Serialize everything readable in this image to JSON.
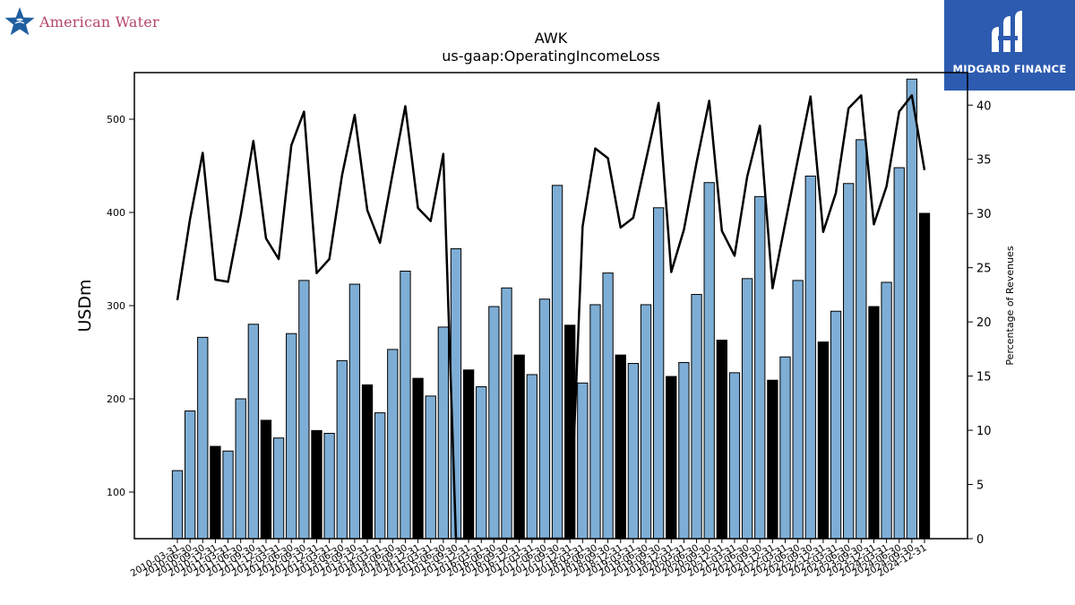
{
  "branding": {
    "left_logo": {
      "icon": "star-water-logo-icon",
      "text": "American Water",
      "color": "#b5446e",
      "icon_color": "#1f5f9f"
    },
    "right_badge": {
      "icon": "midgard-logo-icon",
      "text": "MIDGARD FINANCE",
      "background": "#2d5bb0"
    }
  },
  "chart_data": {
    "type": "bar",
    "title": "AWK",
    "subtitle": "us-gaap:OperatingIncomeLoss",
    "ylabel": "USDm",
    "y2label": "Percentage of Revenues",
    "ylim": [
      50,
      550
    ],
    "y2lim": [
      0,
      43
    ],
    "yticks": [
      100,
      200,
      300,
      400,
      500
    ],
    "y2ticks": [
      0,
      5,
      10,
      15,
      20,
      25,
      30,
      35,
      40
    ],
    "colors": {
      "quarter_bar": "#7eaed5",
      "annual_bar": "#000000",
      "line": "#000000"
    },
    "categories": [
      "2010-03-31",
      "2010-06-30",
      "2010-09-30",
      "2010-12-31",
      "2011-03-31",
      "2011-06-30",
      "2011-09-30",
      "2011-12-31",
      "2012-03-31",
      "2012-06-30",
      "2012-09-30",
      "2012-12-31",
      "2013-03-31",
      "2013-06-30",
      "2013-09-30",
      "2013-12-31",
      "2014-03-31",
      "2014-06-30",
      "2014-09-30",
      "2014-12-31",
      "2015-03-31",
      "2015-06-30",
      "2015-09-30",
      "2015-12-31",
      "2016-03-31",
      "2016-06-30",
      "2016-09-30",
      "2016-12-31",
      "2017-03-31",
      "2017-06-30",
      "2017-09-30",
      "2017-12-31",
      "2018-03-31",
      "2018-06-30",
      "2018-09-30",
      "2018-12-31",
      "2019-03-31",
      "2019-06-30",
      "2019-09-30",
      "2019-12-31",
      "2020-03-31",
      "2020-06-30",
      "2020-09-30",
      "2020-12-31",
      "2021-03-31",
      "2021-06-30",
      "2021-09-30",
      "2021-12-31",
      "2022-03-31",
      "2022-06-30",
      "2022-09-30",
      "2022-12-31",
      "2023-03-31",
      "2023-06-30",
      "2023-09-30",
      "2023-12-31",
      "2024-03-31",
      "2024-06-30",
      "2024-09-30",
      "2024-12-31"
    ],
    "series": [
      {
        "kind": "bar",
        "values": [
          123,
          187,
          266,
          149,
          144,
          200,
          280,
          177,
          158,
          270,
          327,
          166,
          163,
          241,
          323,
          215,
          185,
          253,
          337,
          222,
          203,
          277,
          361,
          231,
          213,
          299,
          319,
          247,
          226,
          307,
          429,
          279,
          217,
          301,
          335,
          247,
          238,
          301,
          405,
          224,
          239,
          312,
          432,
          263,
          228,
          329,
          417,
          220,
          245,
          327,
          439,
          261,
          294,
          431,
          478,
          299,
          325,
          448,
          543,
          399
        ],
        "annual": [
          false,
          false,
          false,
          true,
          false,
          false,
          false,
          true,
          false,
          false,
          false,
          true,
          false,
          false,
          false,
          true,
          false,
          false,
          false,
          true,
          false,
          false,
          false,
          true,
          false,
          false,
          false,
          true,
          false,
          false,
          false,
          true,
          false,
          false,
          false,
          true,
          false,
          false,
          false,
          true,
          false,
          false,
          false,
          true,
          false,
          false,
          false,
          true,
          false,
          false,
          false,
          true,
          false,
          false,
          false,
          true,
          false,
          false,
          false,
          true
        ]
      },
      {
        "kind": "line",
        "axis": "right",
        "values": [
          22.0,
          29.5,
          35.6,
          23.9,
          23.7,
          29.8,
          36.7,
          27.7,
          25.8,
          36.3,
          39.4,
          24.5,
          25.8,
          33.5,
          39.1,
          30.3,
          27.3,
          33.7,
          39.9,
          30.5,
          29.3,
          35.5,
          0,
          0,
          0,
          0,
          0,
          0,
          0,
          0,
          0,
          0,
          28.8,
          36.0,
          35.1,
          28.7,
          29.6,
          34.9,
          40.2,
          24.6,
          28.5,
          34.7,
          40.4,
          28.4,
          26.1,
          33.4,
          38.1,
          23.1,
          29.1,
          35.0,
          40.8,
          28.3,
          31.9,
          39.7,
          40.9,
          29.0,
          32.5,
          39.4,
          40.9,
          34.0
        ]
      }
    ]
  }
}
